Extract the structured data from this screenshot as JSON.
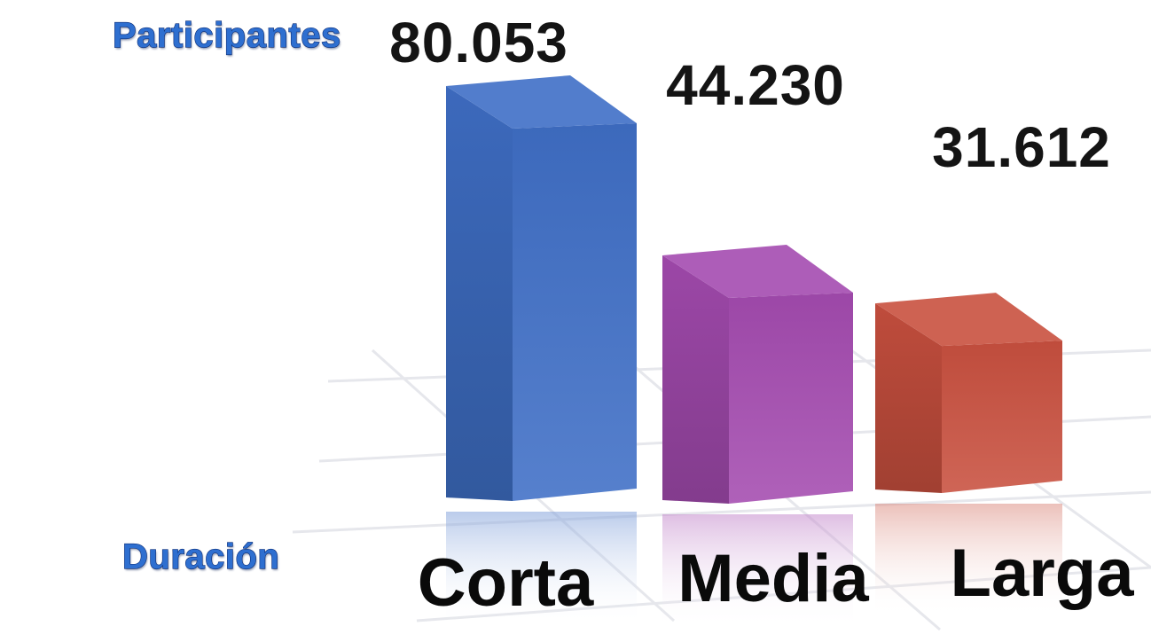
{
  "chart_data": {
    "type": "bar",
    "style": "3d",
    "ylabel": "Participantes",
    "xlabel": "Duración",
    "categories": [
      "Corta",
      "Media",
      "Larga"
    ],
    "values": [
      80053,
      44230,
      31612
    ],
    "value_labels": [
      "80.053",
      "44.230",
      "31.612"
    ],
    "colors": {
      "Corta": "#3f6fc6",
      "Media": "#a44bb0",
      "Larga": "#c9503f"
    },
    "grid": true,
    "legend": "none"
  }
}
